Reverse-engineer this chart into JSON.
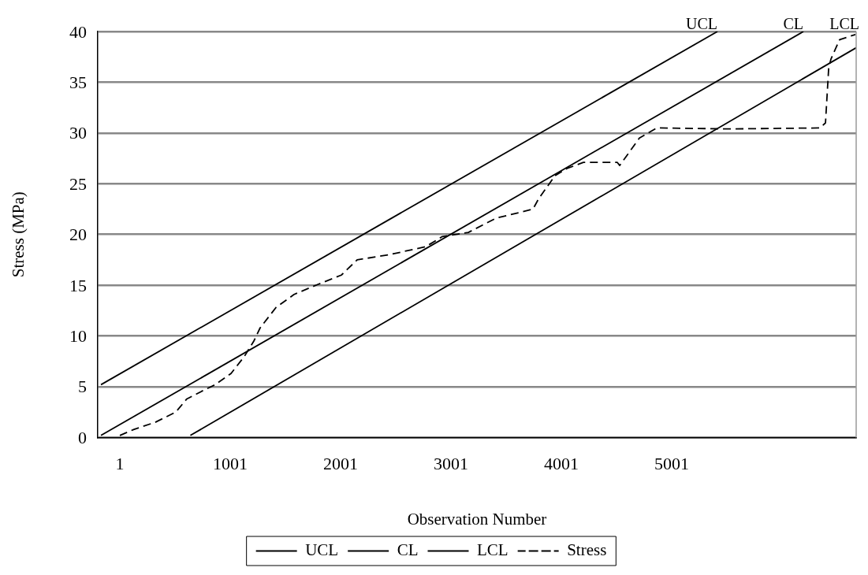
{
  "chart_data": {
    "type": "line",
    "xlabel": "Observation Number",
    "ylabel": "Stress (MPa)",
    "xlim": [
      -199,
      6672
    ],
    "xticks": [
      1,
      1001,
      2001,
      3001,
      4001,
      5001
    ],
    "ylim": [
      0,
      40
    ],
    "yticks": [
      0,
      5,
      10,
      15,
      20,
      25,
      30,
      35,
      40
    ],
    "grid": "y",
    "legend": "bottom",
    "marker": "none",
    "series": [
      {
        "name": "UCL",
        "color": "#000000",
        "line_style": "solid",
        "x": [
          -170,
          5415
        ],
        "values": [
          5.2,
          40
        ]
      },
      {
        "name": "CL",
        "color": "#000000",
        "line_style": "solid",
        "x": [
          -170,
          6194
        ],
        "values": [
          0.2,
          40
        ]
      },
      {
        "name": "LCL",
        "color": "#000000",
        "line_style": "solid",
        "x": [
          640,
          6672
        ],
        "values": [
          0.2,
          38.4
        ]
      },
      {
        "name": "Stress",
        "color": "#000000",
        "line_style": "dashed",
        "x": [
          1,
          130,
          322,
          508,
          608,
          751,
          865,
          1008,
          1130,
          1215,
          1272,
          1415,
          1580,
          1822,
          2008,
          2151,
          2437,
          2773,
          2923,
          3158,
          3408,
          3744,
          3794,
          3944,
          4051,
          4201,
          4508,
          4530,
          4708,
          4865,
          5530,
          6344,
          6394,
          6423,
          6444,
          6522,
          6665
        ],
        "values": [
          0.2,
          0.8,
          1.5,
          2.5,
          3.8,
          4.6,
          5.2,
          6.3,
          8.0,
          9.5,
          10.8,
          12.8,
          14.1,
          15.2,
          16.0,
          17.5,
          18.0,
          18.8,
          19.8,
          20.2,
          21.6,
          22.5,
          23.5,
          25.8,
          26.5,
          27.1,
          27.1,
          26.8,
          29.5,
          30.5,
          30.4,
          30.5,
          31.0,
          36.4,
          37.3,
          39.2,
          39.7
        ]
      }
    ],
    "annotations": [
      {
        "text": "UCL",
        "x": 5415,
        "y": 40
      },
      {
        "text": "CL",
        "x": 6194,
        "y": 40
      },
      "LCL"
    ]
  }
}
